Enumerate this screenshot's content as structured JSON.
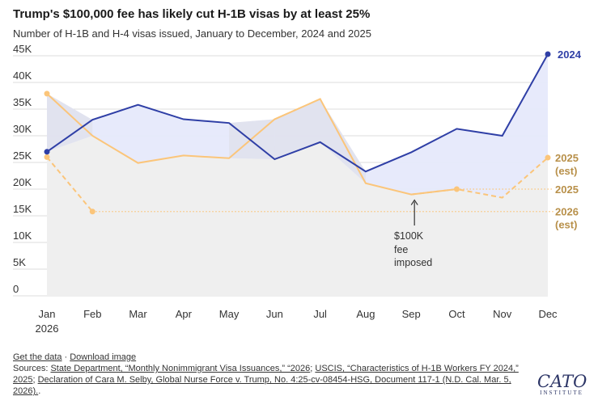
{
  "title": "Trump's $100,000 fee has likely cut H-1B visas by at least 25%",
  "subtitle": "Number of H-1B and H-4 visas issued, January to December, 2024 and 2025",
  "chart_data": {
    "type": "line",
    "categories": [
      "Jan",
      "Feb",
      "Mar",
      "Apr",
      "May",
      "Jun",
      "Jul",
      "Aug",
      "Sep",
      "Oct",
      "Nov",
      "Dec"
    ],
    "year_label": "2026",
    "y_ticks": [
      "45K",
      "40K",
      "35K",
      "30K",
      "25K",
      "20K",
      "15K",
      "10K",
      "5K",
      "0"
    ],
    "ylim": [
      0,
      45000
    ],
    "series": [
      {
        "name": "2024",
        "color": "#2f3fa6",
        "values": [
          27000,
          33000,
          35800,
          33100,
          32400,
          25600,
          28800,
          23300,
          26900,
          31300,
          30000,
          45300
        ]
      },
      {
        "name": "2025",
        "color": "#fbc57a",
        "values": [
          37900,
          30000,
          24900,
          26300,
          25800,
          33100,
          36900,
          21100,
          19000,
          20000,
          null,
          null
        ]
      },
      {
        "name": "2025 (est)",
        "color": "#fbc57a",
        "dashed": true,
        "values": [
          null,
          null,
          null,
          null,
          null,
          null,
          null,
          null,
          19000,
          20000,
          18400,
          25900
        ]
      },
      {
        "name": "2026 (est)",
        "color": "#fbc57a",
        "dashed": true,
        "values": [
          26000,
          15800,
          null,
          null,
          null,
          null,
          null,
          null,
          null,
          null,
          null,
          null
        ]
      }
    ],
    "end_labels": {
      "s2024": "2024",
      "s2025_est_line1": "2025",
      "s2025_est_line2": "(est)",
      "s2025": "2025",
      "s2026_est_line1": "2026",
      "s2026_est_line2": "(est)"
    },
    "annotation": {
      "line1": "$100K",
      "line2": "fee",
      "line3": "imposed",
      "month": "Sep"
    },
    "reference_values": {
      "y2025_oct": 20000,
      "y2026_feb": 15800
    },
    "grid": true,
    "colors": {
      "fill_2024_above": "#e6e9fb",
      "fill_below": "#efefef",
      "grid": "#dddddd"
    }
  },
  "footer": {
    "get_data": "Get the data",
    "sep": "·",
    "download_image": "Download image",
    "sources_prefix": "Sources: ",
    "src1": "State Department, “Monthly Nonimmigrant Visa Issuances,” “2026",
    "src_sep1": "; ",
    "src2": "USCIS, “Characteristics of H-1B Workers FY 2024,” 2025",
    "src_sep2": "; ",
    "src3": "Declaration of Cara M. Selby, Global Nurse Force v. Trump, No. 4:25-cv-08454-HSG, Document 117-1 (N.D. Cal. Mar. 5, 2026).",
    "src_end": "."
  },
  "logo": {
    "big": "CATO",
    "small": "INSTITUTE"
  }
}
